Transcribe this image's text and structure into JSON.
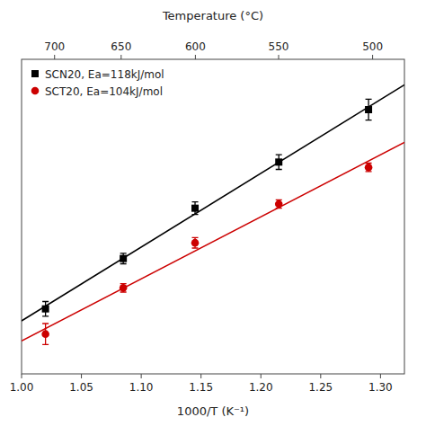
{
  "chart_data": {
    "type": "scatter",
    "xlabel": "1000/T (K⁻¹)",
    "x2label": "Temperature (°C)",
    "xlim": [
      1.0,
      1.32
    ],
    "xticks": [
      {
        "value": 1.0,
        "label": "1.00"
      },
      1.05,
      {
        "value": 1.1,
        "label": "1.10"
      },
      1.15,
      {
        "value": 1.2,
        "label": "1.20"
      },
      1.25,
      {
        "value": 1.3,
        "label": "1.30"
      }
    ],
    "x2lim": [
      1.0,
      1.32
    ],
    "x2ticks": [
      {
        "value": 1.0275904,
        "label": "700"
      },
      {
        "value": 1.0832477,
        "label": "650"
      },
      {
        "value": 1.145278,
        "label": "600"
      },
      {
        "value": 1.2148449,
        "label": "550"
      },
      {
        "value": 1.2934101,
        "label": "500"
      }
    ],
    "ylim": [
      0.0,
      3.0
    ],
    "tick_labels": "x",
    "grid": false,
    "legend": "upper left",
    "series": [
      {
        "name": "SCN20, Ea=118kJ/mol",
        "type": "scatter",
        "marker": "square",
        "color": "#000000",
        "x": [
          1.02,
          1.085,
          1.145,
          1.215,
          1.29
        ],
        "values": [
          0.62,
          1.1,
          1.58,
          2.02,
          2.52
        ],
        "errors": [
          0.07,
          0.05,
          0.06,
          0.07,
          0.1
        ]
      },
      {
        "name": "SCT20, Ea=104kJ/mol",
        "type": "scatter",
        "marker": "circle",
        "color": "#cc0000",
        "x": [
          1.02,
          1.085,
          1.145,
          1.215,
          1.29
        ],
        "values": [
          0.38,
          0.82,
          1.25,
          1.62,
          1.97
        ],
        "errors": [
          0.1,
          0.04,
          0.05,
          0.04,
          0.04
        ]
      },
      {
        "type": "line",
        "line_style": "solid",
        "color": "#000000",
        "x": [
          1.0,
          1.32
        ],
        "values": [
          0.5061,
          2.7565
        ]
      },
      {
        "type": "line",
        "line_style": "solid",
        "color": "#cc0000",
        "x": [
          1.0,
          1.32
        ],
        "values": [
          0.3145,
          2.2081
        ]
      }
    ]
  }
}
